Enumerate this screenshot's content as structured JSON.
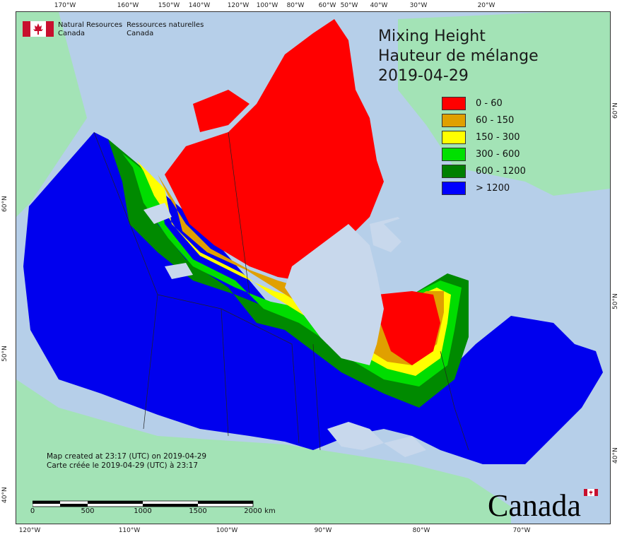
{
  "title": {
    "line1": "Mixing Height",
    "line2": "Hauteur de mélange",
    "date": "2019-04-29"
  },
  "legend": [
    {
      "label": "0 - 60",
      "color": "#ff0000"
    },
    {
      "label": "60 - 150",
      "color": "#e0a000"
    },
    {
      "label": "150 - 300",
      "color": "#ffff00"
    },
    {
      "label": "300 - 600",
      "color": "#00e000"
    },
    {
      "label": "600 - 1200",
      "color": "#008000"
    },
    {
      "label": "> 1200",
      "color": "#0000ff"
    }
  ],
  "agency": {
    "en_line1": "Natural Resources",
    "en_line2": "Canada",
    "fr_line1": "Ressources naturelles",
    "fr_line2": "Canada"
  },
  "credits": {
    "en": "Map created at 23:17 (UTC) on 2019-04-29",
    "fr": "Carte créée le 2019-04-29 (UTC) à 23:17"
  },
  "scalebar": {
    "labels": [
      "0",
      "500",
      "1000",
      "1500",
      "2000"
    ],
    "unit": "km"
  },
  "wordmark": "Canada",
  "ticks": {
    "top": [
      "170°W",
      "160°W",
      "150°W",
      "140°W",
      "120°W",
      "100°W",
      "80°W",
      "60°W",
      "50°W",
      "40°W",
      "30°W",
      "20°W"
    ],
    "bottom": [
      "120°W",
      "110°W",
      "100°W",
      "90°W",
      "80°W",
      "70°W"
    ],
    "left": [
      "60°N",
      "50°N",
      "40°N"
    ],
    "right": [
      "60°N",
      "50°N",
      "40°N"
    ]
  },
  "colors": {
    "ocean": "#b6cfe9",
    "land_outside": "#a3e3b6",
    "water_inland": "#c8d8ec"
  }
}
